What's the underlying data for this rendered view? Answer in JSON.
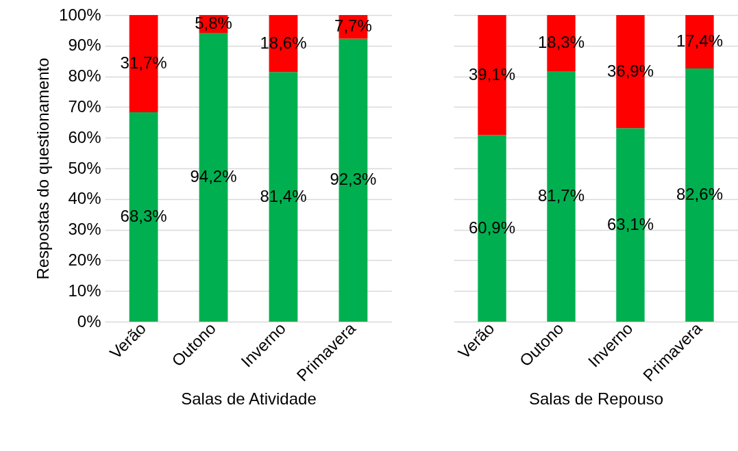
{
  "chart_data": [
    {
      "type": "bar",
      "stacked": true,
      "xlabel": "Salas de Atividade",
      "ylabel": "Respostas do questionamento",
      "categories": [
        "Verão",
        "Outono",
        "Inverno",
        "Primavera"
      ],
      "series": [
        {
          "color": "#00b050",
          "values": [
            68.3,
            94.2,
            81.4,
            92.3
          ],
          "value_labels": [
            "68,3%",
            "94,2%",
            "81,4%",
            "92,3%"
          ]
        },
        {
          "color": "#ff0000",
          "values": [
            31.7,
            5.8,
            18.6,
            7.7
          ],
          "value_labels": [
            "31,7%",
            "5,8%",
            "18,6%",
            "7,7%"
          ]
        }
      ],
      "ylim": [
        0,
        100
      ],
      "yticks": [
        {
          "value": 0,
          "label": "0%"
        },
        {
          "value": 10,
          "label": "10%"
        },
        {
          "value": 20,
          "label": "20%"
        },
        {
          "value": 30,
          "label": "30%"
        },
        {
          "value": 40,
          "label": "40%"
        },
        {
          "value": 50,
          "label": "50%"
        },
        {
          "value": 60,
          "label": "60%"
        },
        {
          "value": 70,
          "label": "70%"
        },
        {
          "value": 80,
          "label": "80%"
        },
        {
          "value": 90,
          "label": "90%"
        },
        {
          "value": 100,
          "label": "100%"
        }
      ],
      "grid": "y"
    },
    {
      "type": "bar",
      "stacked": true,
      "xlabel": "Salas de Repouso",
      "categories": [
        "Verão",
        "Outono",
        "Inverno",
        "Primavera"
      ],
      "series": [
        {
          "color": "#00b050",
          "values": [
            60.9,
            81.7,
            63.1,
            82.6
          ],
          "value_labels": [
            "60,9%",
            "81,7%",
            "63,1%",
            "82,6%"
          ]
        },
        {
          "color": "#ff0000",
          "values": [
            39.1,
            18.3,
            36.9,
            17.4
          ],
          "value_labels": [
            "39,1%",
            "18,3%",
            "36,9%",
            "17,4%"
          ]
        }
      ],
      "ylim": [
        0,
        100
      ],
      "yticks": [
        0,
        10,
        20,
        30,
        40,
        50,
        60,
        70,
        80,
        90,
        100
      ],
      "grid": "y",
      "tick_labels": "x"
    }
  ]
}
